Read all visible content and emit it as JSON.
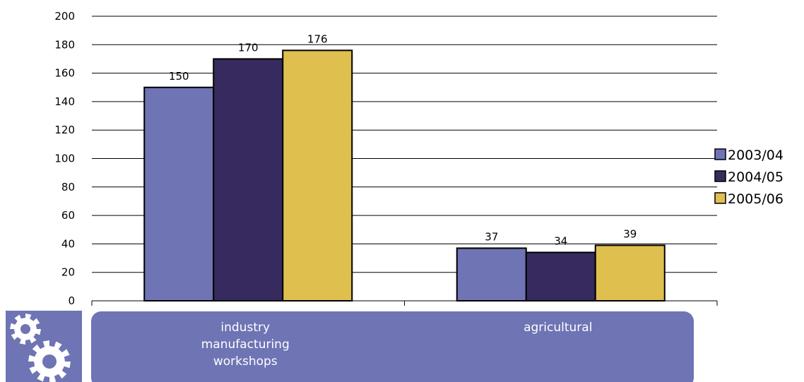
{
  "chart_data": {
    "type": "bar",
    "categories": [
      [
        "industry",
        "manufacturing",
        "workshops"
      ],
      [
        "agricultural"
      ]
    ],
    "series": [
      {
        "name": "2003/04",
        "values": [
          150,
          37
        ],
        "color": "#6e74b4"
      },
      {
        "name": "2004/05",
        "values": [
          170,
          34
        ],
        "color": "#372a5e"
      },
      {
        "name": "2005/06",
        "values": [
          176,
          39
        ],
        "color": "#dfbf4e"
      }
    ],
    "ylim": [
      0,
      200
    ],
    "yticks": [
      0,
      20,
      40,
      60,
      80,
      100,
      120,
      140,
      160,
      180,
      200
    ],
    "grid": true,
    "legend_position": "right",
    "data_labels": true
  },
  "style": {
    "category_band_color": "#6e74b4",
    "icon_tile_color": "#6e74b4",
    "gridline_color": "#000000",
    "bar_outline_color": "#000000"
  },
  "icon": {
    "name": "gears-icon"
  }
}
